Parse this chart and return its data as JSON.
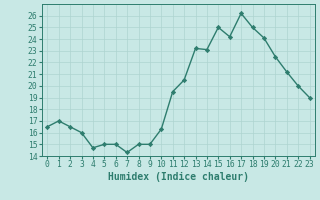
{
  "x": [
    0,
    1,
    2,
    3,
    4,
    5,
    6,
    7,
    8,
    9,
    10,
    11,
    12,
    13,
    14,
    15,
    16,
    17,
    18,
    19,
    20,
    21,
    22,
    23
  ],
  "y": [
    16.5,
    17.0,
    16.5,
    16.0,
    14.7,
    15.0,
    15.0,
    14.3,
    15.0,
    15.0,
    16.3,
    19.5,
    20.5,
    23.2,
    23.1,
    25.0,
    24.2,
    26.2,
    25.0,
    24.1,
    22.5,
    21.2,
    20.0,
    19.0
  ],
  "line_color": "#2e7d6e",
  "marker": "D",
  "marker_size": 2.2,
  "line_width": 1.0,
  "bg_color": "#c8e8e5",
  "grid_color": "#aed4d0",
  "xlabel": "Humidex (Indice chaleur)",
  "ylim": [
    14,
    27
  ],
  "yticks": [
    14,
    15,
    16,
    17,
    18,
    19,
    20,
    21,
    22,
    23,
    24,
    25,
    26
  ],
  "xticks": [
    0,
    1,
    2,
    3,
    4,
    5,
    6,
    7,
    8,
    9,
    10,
    11,
    12,
    13,
    14,
    15,
    16,
    17,
    18,
    19,
    20,
    21,
    22,
    23
  ],
  "tick_label_fontsize": 5.8,
  "xlabel_fontsize": 7.0
}
